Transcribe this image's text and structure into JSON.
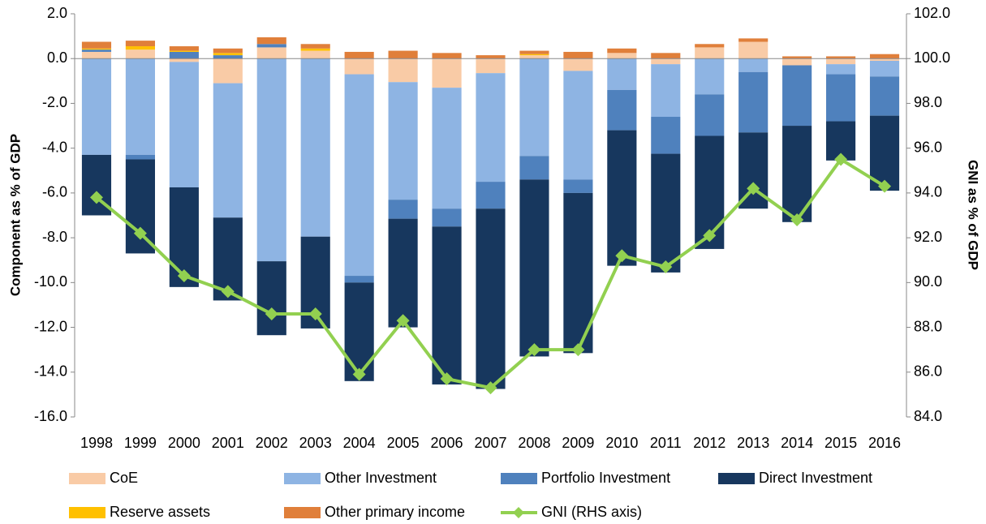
{
  "chart_data": {
    "type": "bar",
    "y_label": "Component as % of GDP",
    "y2_label": "GNI as % of GDP",
    "categories": [
      "1998",
      "1999",
      "2000",
      "2001",
      "2002",
      "2003",
      "2004",
      "2005",
      "2006",
      "2007",
      "2008",
      "2009",
      "2010",
      "2011",
      "2012",
      "2013",
      "2014",
      "2015",
      "2016"
    ],
    "series": [
      {
        "name": "CoE",
        "color": "#f9cba6",
        "values": [
          0.3,
          0.4,
          -0.15,
          -1.1,
          0.5,
          0.35,
          -0.7,
          -1.05,
          -1.3,
          -0.65,
          0.15,
          -0.55,
          0.25,
          -0.25,
          0.5,
          0.75,
          -0.3,
          -0.25,
          -0.1
        ]
      },
      {
        "name": "Other Investment",
        "color": "#8eb4e3",
        "values": [
          -4.3,
          -4.3,
          -5.6,
          -6.0,
          -9.05,
          -7.95,
          -9.0,
          -5.25,
          -5.4,
          -4.85,
          -4.35,
          -4.85,
          -1.4,
          -2.35,
          -1.6,
          -0.6,
          0,
          -0.45,
          -0.7
        ]
      },
      {
        "name": "Portfolio Investment",
        "color": "#4f81bd",
        "values": [
          0.1,
          -0.2,
          0.3,
          0.15,
          0.15,
          0,
          -0.3,
          -0.85,
          -0.8,
          -1.2,
          -1.05,
          -0.6,
          -1.8,
          -1.65,
          -1.85,
          -2.7,
          -2.7,
          -2.1,
          -1.75
        ]
      },
      {
        "name": "Direct Investment",
        "color": "#17375e",
        "values": [
          -2.7,
          -4.2,
          -4.45,
          -3.7,
          -3.3,
          -4.1,
          -4.4,
          -4.85,
          -7.05,
          -8.05,
          -7.9,
          -7.15,
          -6.05,
          -5.3,
          -5.05,
          -3.4,
          -4.3,
          -1.75,
          -3.35
        ]
      },
      {
        "name": "Reserve assets",
        "color": "#ffc000",
        "values": [
          0.05,
          0.15,
          0.05,
          0.1,
          0,
          0.1,
          0,
          0,
          0,
          0,
          0.05,
          0,
          0,
          0,
          0,
          0,
          0,
          0,
          0
        ]
      },
      {
        "name": "Other primary income",
        "color": "#e07f3a",
        "values": [
          0.3,
          0.25,
          0.2,
          0.2,
          0.3,
          0.2,
          0.3,
          0.35,
          0.25,
          0.15,
          0.15,
          0.3,
          0.2,
          0.25,
          0.15,
          0.15,
          0.1,
          0.1,
          0.2
        ]
      },
      {
        "name": "GNI (RHS axis)",
        "color": "#92d050",
        "type": "line",
        "axis": "y2",
        "values": [
          93.8,
          92.2,
          90.3,
          89.6,
          88.6,
          88.6,
          85.9,
          88.3,
          85.7,
          85.3,
          87.0,
          87.0,
          91.2,
          90.7,
          92.1,
          94.2,
          92.8,
          95.5,
          94.3
        ]
      }
    ],
    "ylim": [
      -16,
      2
    ],
    "yticks": [
      {
        "value": -16,
        "label": "-16.0"
      },
      {
        "value": -14,
        "label": "-14.0"
      },
      {
        "value": -12,
        "label": "-12.0"
      },
      {
        "value": -10,
        "label": "-10.0"
      },
      {
        "value": -8,
        "label": "-8.0"
      },
      {
        "value": -6,
        "label": "-6.0"
      },
      {
        "value": -4,
        "label": "-4.0"
      },
      {
        "value": -2,
        "label": "-2.0"
      },
      {
        "value": 0,
        "label": "0.0"
      },
      {
        "value": 2,
        "label": "2.0"
      }
    ],
    "y2lim": [
      84,
      102
    ],
    "y2ticks": [
      {
        "value": 84,
        "label": "84.0"
      },
      {
        "value": 86,
        "label": "86.0"
      },
      {
        "value": 88,
        "label": "88.0"
      },
      {
        "value": 90,
        "label": "90.0"
      },
      {
        "value": 92,
        "label": "92.0"
      },
      {
        "value": 94,
        "label": "94.0"
      },
      {
        "value": 96,
        "label": "96.0"
      },
      {
        "value": 98,
        "label": "98.0"
      },
      {
        "value": 100,
        "label": "100.0"
      },
      {
        "value": 102,
        "label": "102.0"
      }
    ],
    "grid": false,
    "legend": "bottom"
  }
}
